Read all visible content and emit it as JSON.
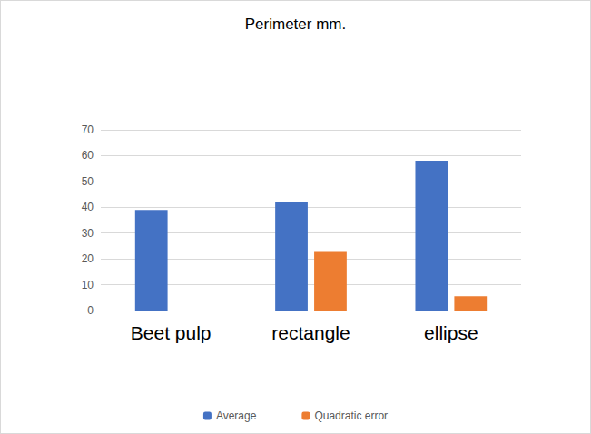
{
  "chart_data": {
    "type": "bar",
    "title": "Perimeter mm.",
    "categories": [
      "Beet pulp",
      "rectangle",
      "ellipse"
    ],
    "series": [
      {
        "name": "Average",
        "color": "#4472c4",
        "values": [
          39,
          42,
          58
        ]
      },
      {
        "name": "Quadratic error",
        "color": "#ed7d31",
        "values": [
          null,
          23,
          5.5
        ]
      }
    ],
    "ylim": [
      0,
      70
    ],
    "yticks": [
      0,
      10,
      20,
      30,
      40,
      50,
      60,
      70
    ],
    "grid": true,
    "legend": "bottom"
  }
}
